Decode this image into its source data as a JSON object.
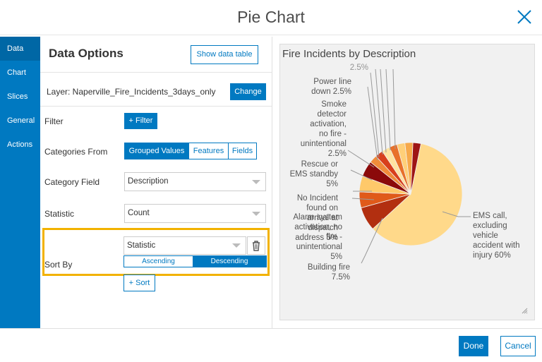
{
  "dialog": {
    "title": "Pie Chart"
  },
  "sidebar": {
    "tabs": [
      {
        "label": "Data"
      },
      {
        "label": "Chart"
      },
      {
        "label": "Slices"
      },
      {
        "label": "General"
      },
      {
        "label": "Actions"
      }
    ]
  },
  "data_options": {
    "title": "Data Options",
    "show_table_label": "Show data table",
    "layer_label": "Layer: Naperville_Fire_Incidents_3days_only",
    "change_label": "Change",
    "filter_label": "Filter",
    "add_filter_label": "+ Filter",
    "categories_from_label": "Categories From",
    "categories_options": [
      "Grouped Values",
      "Features",
      "Fields"
    ],
    "category_field_label": "Category Field",
    "category_field_value": "Description",
    "statistic_label": "Statistic",
    "statistic_value": "Count",
    "sort_by_label": "Sort By",
    "sort_value": "Statistic",
    "sort_order_options": [
      "Ascending",
      "Descending"
    ],
    "add_sort_label": "+ Sort"
  },
  "chart_data": {
    "type": "pie",
    "title": "Fire Incidents by Description",
    "slices": [
      {
        "label": "EMS call, excluding vehicle accident with injury",
        "value": 60,
        "color": "#ffd98a"
      },
      {
        "label": "Building fire",
        "value": 7.5,
        "color": "#b22f10"
      },
      {
        "label": "Alarm system activation, no fire - unintentional",
        "value": 5,
        "color": "#e05a1a"
      },
      {
        "label": "No Incident found on arrival at dispatch address",
        "value": 5,
        "color": "#ffc96a"
      },
      {
        "label": "Rescue or EMS standby",
        "value": 5,
        "color": "#8b0a0a"
      },
      {
        "label": "Smoke detector activation, no fire - unintentional",
        "value": 2.5,
        "color": "#f08c3a"
      },
      {
        "label": "Power line down",
        "value": 2.5,
        "color": "#d8401c"
      },
      {
        "label": "",
        "value": 2.5,
        "color": "#ffe3a0"
      },
      {
        "label": "",
        "value": 2.5,
        "color": "#e8702a"
      },
      {
        "label": "",
        "value": 2.5,
        "color": "#ffcf78"
      },
      {
        "label": "",
        "value": 2.5,
        "color": "#f7a94a"
      },
      {
        "label": "",
        "value": 2.5,
        "color": "#9e1414"
      }
    ],
    "visible_labels": [
      "EMS call,",
      "excluding",
      "vehicle",
      "accident with",
      "injury 60%",
      "Building fire",
      "7.5%",
      "Alarm system",
      "activation, no",
      "fire -",
      "unintentional",
      "5%",
      "No Incident",
      "found on",
      "arrival at",
      "dispatch",
      "address 5%",
      "Rescue or",
      "EMS standby",
      "5%",
      "Smoke",
      "detector",
      "activation,",
      "no fire -",
      "unintentional",
      "2.5%",
      "Power line",
      "down 2.5%",
      "2.5%"
    ]
  },
  "footer": {
    "done_label": "Done",
    "cancel_label": "Cancel"
  },
  "colors": {
    "accent": "#0079c1",
    "highlight": "#f2b200"
  }
}
